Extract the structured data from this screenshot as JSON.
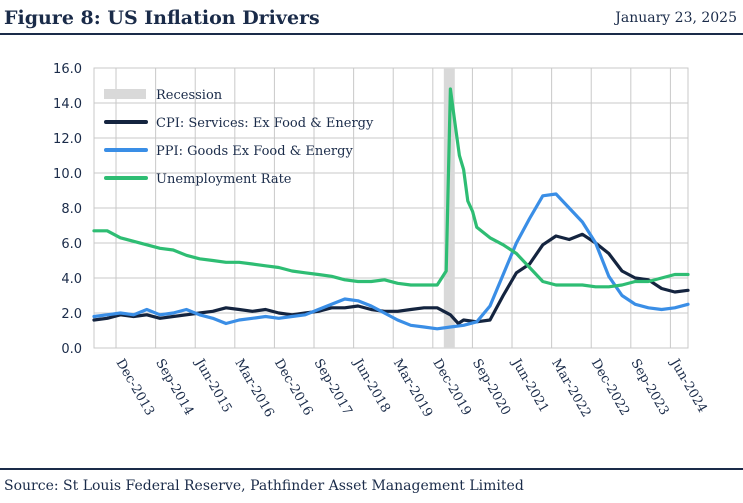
{
  "header": {
    "title": "Figure 8: US Inflation Drivers",
    "date": "January 23, 2025"
  },
  "footer": {
    "source": "Source: St Louis Federal Reserve, Pathfinder Asset Management Limited"
  },
  "colors": {
    "navy": "#1a2b49",
    "cpi": "#14243f",
    "ppi": "#3a8ee6",
    "unemployment": "#2ebd73",
    "recession": "#d9d9d9",
    "grid": "#c9c9c9"
  },
  "chart_data": {
    "type": "line",
    "ylim": [
      0,
      16
    ],
    "xlim": [
      2013.5,
      2024.75
    ],
    "yticks": [
      "0.0",
      "2.0",
      "4.0",
      "6.0",
      "8.0",
      "10.0",
      "12.0",
      "14.0",
      "16.0"
    ],
    "ytick_values": [
      0,
      2,
      4,
      6,
      8,
      10,
      12,
      14,
      16
    ],
    "xtick_labels": [
      "Dec-2013",
      "Sep-2014",
      "Jun-2015",
      "Mar-2016",
      "Dec-2016",
      "Sep-2017",
      "Jun-2018",
      "Mar-2019",
      "Dec-2019",
      "Sep-2020",
      "Jun-2021",
      "Mar-2022",
      "Dec-2022",
      "Sep-2023",
      "Jun-2024"
    ],
    "xtick_values": [
      2013.917,
      2014.667,
      2015.417,
      2016.167,
      2016.917,
      2017.667,
      2018.417,
      2019.167,
      2019.917,
      2020.667,
      2021.417,
      2022.167,
      2022.917,
      2023.667,
      2024.417
    ],
    "grid": true,
    "legend_position": "top-left",
    "recession": {
      "name": "Recession",
      "start": 2020.125,
      "end": 2020.333
    },
    "series": [
      {
        "name": "CPI: Services: Ex Food & Energy",
        "key": "cpi",
        "x": [
          2013.5,
          2013.75,
          2014.0,
          2014.25,
          2014.5,
          2014.75,
          2015.0,
          2015.25,
          2015.5,
          2015.75,
          2016.0,
          2016.25,
          2016.5,
          2016.75,
          2017.0,
          2017.25,
          2017.5,
          2017.75,
          2018.0,
          2018.25,
          2018.5,
          2018.75,
          2019.0,
          2019.25,
          2019.5,
          2019.75,
          2020.0,
          2020.25,
          2020.4,
          2020.5,
          2020.75,
          2021.0,
          2021.25,
          2021.5,
          2021.75,
          2022.0,
          2022.25,
          2022.5,
          2022.75,
          2023.0,
          2023.25,
          2023.5,
          2023.75,
          2024.0,
          2024.25,
          2024.5,
          2024.75
        ],
        "values": [
          1.6,
          1.7,
          1.9,
          1.8,
          1.9,
          1.7,
          1.8,
          1.9,
          2.0,
          2.1,
          2.3,
          2.2,
          2.1,
          2.2,
          2.0,
          1.9,
          2.0,
          2.1,
          2.3,
          2.3,
          2.4,
          2.2,
          2.1,
          2.1,
          2.2,
          2.3,
          2.3,
          1.9,
          1.4,
          1.6,
          1.5,
          1.6,
          3.0,
          4.3,
          4.8,
          5.9,
          6.4,
          6.2,
          6.5,
          6.0,
          5.4,
          4.4,
          4.0,
          3.9,
          3.4,
          3.2,
          3.3
        ]
      },
      {
        "name": "PPI: Goods Ex Food & Energy",
        "key": "ppi",
        "x": [
          2013.5,
          2013.75,
          2014.0,
          2014.25,
          2014.5,
          2014.75,
          2015.0,
          2015.25,
          2015.5,
          2015.75,
          2016.0,
          2016.25,
          2016.5,
          2016.75,
          2017.0,
          2017.25,
          2017.5,
          2017.75,
          2018.0,
          2018.25,
          2018.5,
          2018.75,
          2019.0,
          2019.25,
          2019.5,
          2019.75,
          2020.0,
          2020.25,
          2020.5,
          2020.75,
          2021.0,
          2021.25,
          2021.5,
          2021.75,
          2022.0,
          2022.25,
          2022.5,
          2022.75,
          2023.0,
          2023.25,
          2023.5,
          2023.75,
          2024.0,
          2024.25,
          2024.5,
          2024.75
        ],
        "values": [
          1.8,
          1.9,
          2.0,
          1.9,
          2.2,
          1.9,
          2.0,
          2.2,
          1.9,
          1.7,
          1.4,
          1.6,
          1.7,
          1.8,
          1.7,
          1.8,
          1.9,
          2.2,
          2.5,
          2.8,
          2.7,
          2.4,
          2.0,
          1.6,
          1.3,
          1.2,
          1.1,
          1.2,
          1.3,
          1.5,
          2.4,
          4.2,
          6.0,
          7.4,
          8.7,
          8.8,
          8.0,
          7.2,
          6.0,
          4.1,
          3.0,
          2.5,
          2.3,
          2.2,
          2.3,
          2.5
        ]
      },
      {
        "name": "Unemployment Rate",
        "key": "unemployment",
        "x": [
          2013.5,
          2013.75,
          2014.0,
          2014.25,
          2014.5,
          2014.75,
          2015.0,
          2015.25,
          2015.5,
          2015.75,
          2016.0,
          2016.25,
          2016.5,
          2016.75,
          2017.0,
          2017.25,
          2017.5,
          2017.75,
          2018.0,
          2018.25,
          2018.5,
          2018.75,
          2019.0,
          2019.25,
          2019.5,
          2019.75,
          2020.0,
          2020.17,
          2020.25,
          2020.33,
          2020.42,
          2020.5,
          2020.58,
          2020.67,
          2020.75,
          2021.0,
          2021.25,
          2021.5,
          2021.75,
          2022.0,
          2022.25,
          2022.5,
          2022.75,
          2023.0,
          2023.25,
          2023.5,
          2023.75,
          2024.0,
          2024.25,
          2024.5,
          2024.75
        ],
        "values": [
          6.7,
          6.7,
          6.3,
          6.1,
          5.9,
          5.7,
          5.6,
          5.3,
          5.1,
          5.0,
          4.9,
          4.9,
          4.8,
          4.7,
          4.6,
          4.4,
          4.3,
          4.2,
          4.1,
          3.9,
          3.8,
          3.8,
          3.9,
          3.7,
          3.6,
          3.6,
          3.6,
          4.4,
          14.8,
          13.0,
          11.0,
          10.2,
          8.4,
          7.8,
          6.9,
          6.3,
          5.9,
          5.4,
          4.6,
          3.8,
          3.6,
          3.6,
          3.6,
          3.5,
          3.5,
          3.6,
          3.8,
          3.8,
          4.0,
          4.2,
          4.2
        ]
      }
    ]
  }
}
